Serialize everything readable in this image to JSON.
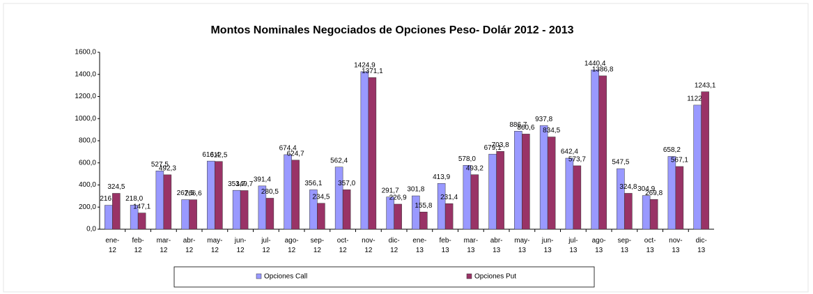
{
  "chart_data": {
    "type": "bar",
    "title": "Montos Nominales Negociados de Opciones Peso- Dolár  2012 - 2013",
    "categories": [
      "ene-12",
      "feb-12",
      "mar-12",
      "abr-12",
      "may-12",
      "jun-12",
      "jul-12",
      "ago-12",
      "sep-12",
      "oct-12",
      "nov-12",
      "dic-12",
      "ene-13",
      "feb-13",
      "mar-13",
      "abr-13",
      "may-13",
      "jun-13",
      "jul-13",
      "ago-13",
      "sep-13",
      "oct-13",
      "nov-13",
      "dic-13"
    ],
    "series": [
      {
        "name": "Opciones Call",
        "color": "#9999ff",
        "values": [
          216.8,
          218.0,
          527.5,
          267.5,
          616.4,
          351.7,
          391.4,
          674.4,
          356.1,
          562.4,
          1424.9,
          291.7,
          301.8,
          413.9,
          578.0,
          679.1,
          886.7,
          937.8,
          642.4,
          1440.4,
          547.5,
          304.9,
          658.2,
          1122.0
        ],
        "value_labels": [
          "216,8",
          "218,0",
          "527,5",
          "267,5",
          "616,4",
          "351,7",
          "391,4",
          "674,4",
          "356,1",
          "562,4",
          "1424,9",
          "291,7",
          "301,8",
          "413,9",
          "578,0",
          "679,1",
          "886,7",
          "937,8",
          "642,4",
          "1440,4",
          "547,5",
          "304,9",
          "658,2",
          "1122,0"
        ]
      },
      {
        "name": "Opciones Put",
        "color": "#993366",
        "values": [
          324.5,
          147.1,
          492.3,
          266.6,
          612.5,
          349.7,
          280.5,
          624.7,
          234.5,
          357.0,
          1371.1,
          226.9,
          155.8,
          231.4,
          493.2,
          703.8,
          860.6,
          834.5,
          573.7,
          1386.8,
          324.8,
          269.8,
          567.1,
          1243.1
        ],
        "value_labels": [
          "324,5",
          "147,1",
          "492,3",
          "266,6",
          "612,5",
          "349,7",
          "280,5",
          "624,7",
          "234,5",
          "357,0",
          "1371,1",
          "226,9",
          "155,8",
          "231,4",
          "493,2",
          "703,8",
          "860,6",
          "834,5",
          "573,7",
          "1386,8",
          "324,8",
          "269,8",
          "567,1",
          "1243,1"
        ]
      }
    ],
    "ylim": [
      0,
      1600
    ],
    "yticks": [
      {
        "value": 0,
        "label": "0,0"
      },
      {
        "value": 200,
        "label": "200,0"
      },
      {
        "value": 400,
        "label": "400,0"
      },
      {
        "value": 600,
        "label": "600,0"
      },
      {
        "value": 800,
        "label": "800,0"
      },
      {
        "value": 1000,
        "label": "1000,0"
      },
      {
        "value": 1200,
        "label": "1200,0"
      },
      {
        "value": 1400,
        "label": "1400,0"
      },
      {
        "value": 1600,
        "label": "1600,0"
      }
    ],
    "grid": false
  }
}
